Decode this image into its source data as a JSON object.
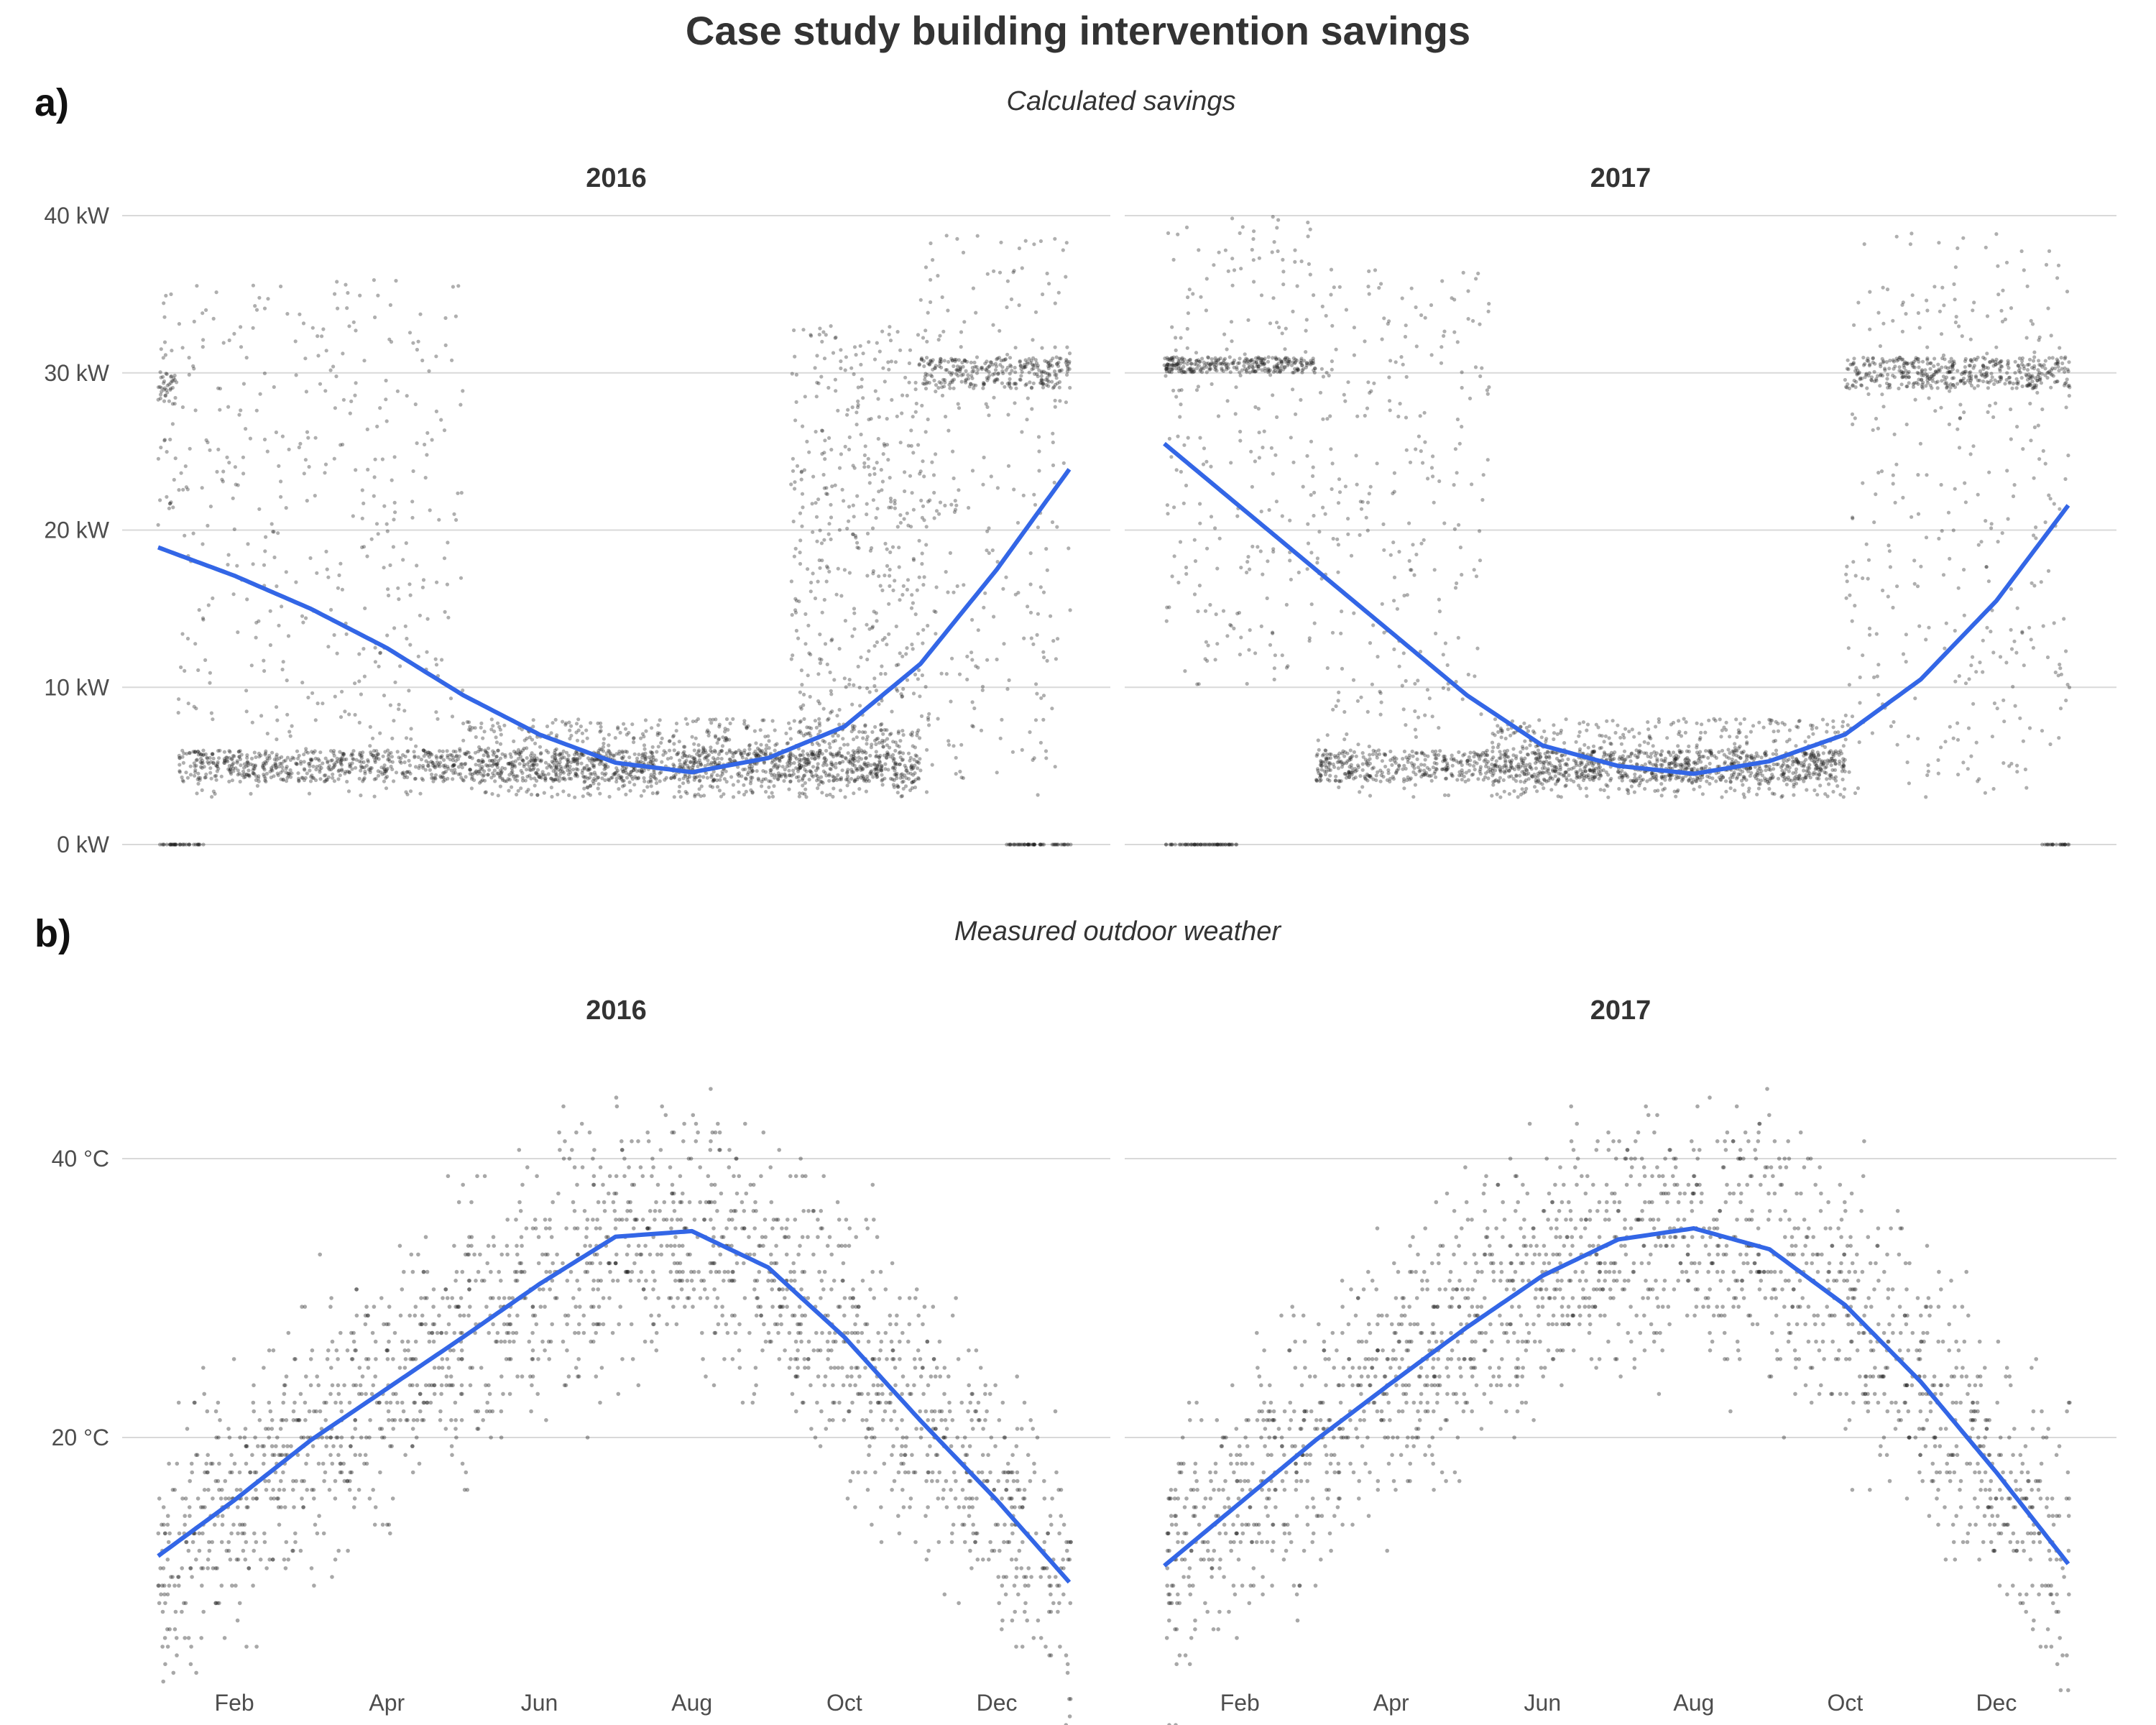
{
  "title": "Case study building intervention savings",
  "panels": [
    {
      "tag": "a)",
      "subtitle": "Calculated savings"
    },
    {
      "tag": "b)",
      "subtitle": "Measured outdoor weather"
    }
  ],
  "colors": {
    "points": "#1a1a1a",
    "smooth": "#3366e6",
    "grid": "#d9d9d9"
  },
  "chart_data": [
    {
      "type": "scatter",
      "panel": "a)",
      "subtitle": "Calculated savings",
      "facets": [
        "2016",
        "2017"
      ],
      "ylim": [
        0,
        40
      ],
      "y_ticks": [
        0,
        10,
        20,
        30,
        40
      ],
      "y_tick_labels": [
        "0 kW",
        "10 kW",
        "20 kW",
        "30 kW",
        "40 kW"
      ],
      "x_ticks": [
        "Feb",
        "Apr",
        "Jun",
        "Aug",
        "Oct",
        "Dec"
      ],
      "show_x_ticks": false,
      "grid": true,
      "series": [
        {
          "facet": "2016",
          "smooth_month": [
            1.0,
            2.0,
            3.0,
            4.0,
            5.0,
            6.0,
            7.0,
            8.0,
            9.0,
            10.0,
            11.0,
            12.0,
            12.97
          ],
          "smooth_value": [
            18.9,
            17.1,
            15.0,
            12.5,
            9.5,
            7.0,
            5.2,
            4.6,
            5.5,
            7.5,
            11.5,
            17.5,
            24.0
          ],
          "point_bands": [
            {
              "months": [
                1.0,
                1.25
              ],
              "low": 20,
              "high": 35,
              "dense": [
                28,
                30
              ]
            },
            {
              "months": [
                1.25,
                5.0
              ],
              "low": 3,
              "high": 36,
              "dense": [
                4,
                6
              ]
            },
            {
              "months": [
                5.0,
                11.0
              ],
              "low": 3,
              "high": 8,
              "dense": [
                4,
                6
              ]
            },
            {
              "months": [
                9.3,
                11.1
              ],
              "low": 5,
              "high": 33
            },
            {
              "months": [
                11.0,
                12.97
              ],
              "low": 3,
              "high": 39,
              "dense": [
                29,
                31
              ]
            },
            {
              "months": [
                1.0,
                1.6
              ],
              "low": 0,
              "high": 0
            },
            {
              "months": [
                12.1,
                12.97
              ],
              "low": 0,
              "high": 0
            }
          ]
        },
        {
          "facet": "2017",
          "smooth_month": [
            1.0,
            2.0,
            3.0,
            4.0,
            5.0,
            6.0,
            7.0,
            8.0,
            9.0,
            10.0,
            11.0,
            12.0,
            12.97
          ],
          "smooth_value": [
            25.5,
            21.5,
            17.5,
            13.5,
            9.5,
            6.3,
            5.0,
            4.5,
            5.3,
            7.0,
            10.5,
            15.5,
            21.7
          ],
          "point_bands": [
            {
              "months": [
                1.0,
                3.0
              ],
              "low": 10,
              "high": 40,
              "dense": [
                30,
                31
              ]
            },
            {
              "months": [
                3.0,
                5.3
              ],
              "low": 3,
              "high": 37,
              "dense": [
                4,
                6
              ]
            },
            {
              "months": [
                5.3,
                10.0
              ],
              "low": 3,
              "high": 8,
              "dense": [
                4,
                6
              ]
            },
            {
              "months": [
                10.0,
                12.97
              ],
              "low": 3,
              "high": 39,
              "dense": [
                29,
                31
              ]
            },
            {
              "months": [
                1.0,
                2.0
              ],
              "low": 0,
              "high": 0
            },
            {
              "months": [
                12.6,
                12.97
              ],
              "low": 0,
              "high": 0
            }
          ]
        }
      ]
    },
    {
      "type": "scatter",
      "panel": "b)",
      "subtitle": "Measured outdoor weather",
      "facets": [
        "2016",
        "2017"
      ],
      "ylim": [
        2,
        49
      ],
      "y_ticks": [
        20,
        40
      ],
      "y_tick_labels": [
        "20 °C",
        "40 °C"
      ],
      "x_ticks": [
        "Feb",
        "Apr",
        "Jun",
        "Aug",
        "Oct",
        "Dec"
      ],
      "grid": true,
      "series": [
        {
          "facet": "2016",
          "smooth_month": [
            1.0,
            2.0,
            3.0,
            4.0,
            5.0,
            6.0,
            7.0,
            8.0,
            9.0,
            10.0,
            11.0,
            12.0,
            12.97
          ],
          "smooth_value": [
            11.5,
            15.5,
            19.8,
            23.5,
            27.2,
            31.0,
            34.4,
            34.8,
            32.2,
            27.2,
            21.2,
            15.5,
            9.5
          ],
          "point_spread": 8
        },
        {
          "facet": "2017",
          "smooth_month": [
            1.0,
            2.0,
            3.0,
            4.0,
            5.0,
            6.0,
            7.0,
            8.0,
            9.0,
            10.0,
            11.0,
            12.0,
            12.97
          ],
          "smooth_value": [
            10.8,
            15.3,
            19.8,
            23.9,
            27.9,
            31.6,
            34.2,
            35.0,
            33.5,
            29.5,
            24.0,
            17.5,
            10.8
          ],
          "point_spread": 8
        }
      ]
    }
  ]
}
